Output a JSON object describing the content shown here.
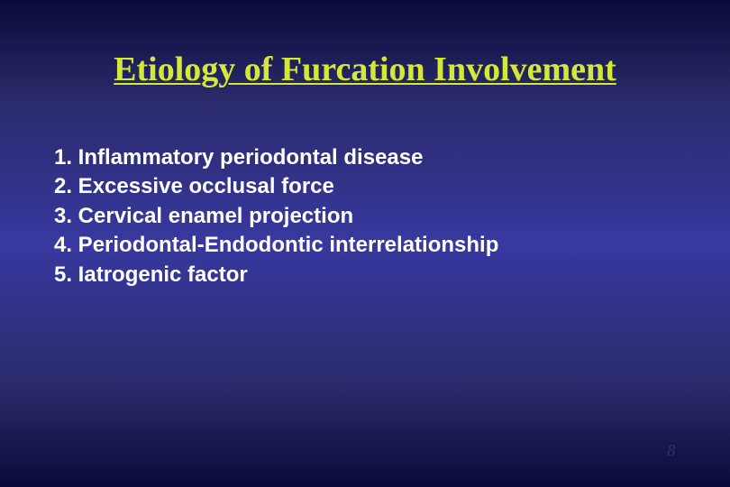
{
  "slide": {
    "title": "Etiology of Furcation Involvement",
    "title_color": "#d4e838",
    "title_fontsize": 38,
    "title_font": "Times New Roman",
    "background_gradient": [
      "#0a0a3a",
      "#2a2a6a",
      "#3838a0",
      "#2a2a6a",
      "#0a0a3a"
    ],
    "items": [
      "1. Inflammatory periodontal disease",
      "2. Excessive occlusal force",
      "3. Cervical enamel projection",
      "4. Periodontal-Endodontic interrelationship",
      "5. Iatrogenic factor"
    ],
    "item_color": "#ffffff",
    "item_fontsize": 24,
    "item_font": "Arial",
    "page_number": "8",
    "page_number_color": "#2a2a6a"
  }
}
